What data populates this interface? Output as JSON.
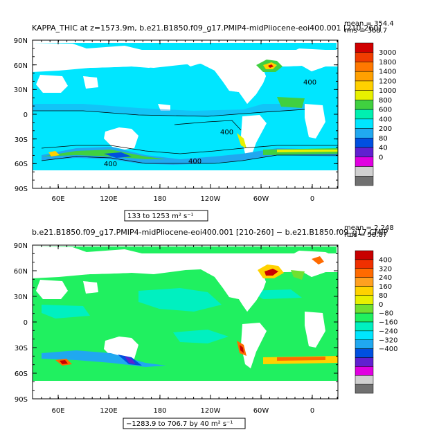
{
  "panel1": {
    "title": "KAPPA_THIC at z=1573.9m, b.e21.B1850.f09_g17.PMIP4-midPliocene-eoi400.001 [210-260]",
    "mean_label": "mean = 354.4",
    "rms_label": "rms = 368.7",
    "range_label": "133 to 1253 m² s⁻¹",
    "contour_labels": [
      "400",
      "400",
      "400",
      "400"
    ],
    "colorbar": {
      "labels": [
        "3000",
        "1800",
        "1400",
        "1200",
        "1000",
        "800",
        "600",
        "400",
        "200",
        "80",
        "40",
        "0"
      ],
      "colors": [
        "#d00000",
        "#f03c00",
        "#ff7800",
        "#ffa000",
        "#ffd000",
        "#e8f000",
        "#40d040",
        "#00f0b0",
        "#00e6ff",
        "#20a8f0",
        "#0050e0",
        "#6020d0",
        "#e000e0",
        "#d0d0d0",
        "#707070"
      ]
    }
  },
  "panel2": {
    "title": "b.e21.B1850.f09_g17.PMIP4-midPliocene-eoi400.001 [210-260] − b.e21.B1850.f09_g17.CMIP",
    "mean_label": "mean = 2.248",
    "rms_label": "rms = 58.87",
    "range_label": "−1283.9 to 706.7 by 40 m² s⁻¹",
    "colorbar": {
      "labels": [
        "400",
        "320",
        "240",
        "160",
        "80",
        "0",
        "−80",
        "−160",
        "−240",
        "−320",
        "−400"
      ],
      "colors": [
        "#c80000",
        "#f03000",
        "#ff6a00",
        "#ffa020",
        "#ffd200",
        "#e8f000",
        "#70e030",
        "#20f060",
        "#00f0c0",
        "#00e6ff",
        "#20a8f0",
        "#0050e0",
        "#6020d0",
        "#e000e0",
        "#d0d0d0",
        "#707070"
      ]
    }
  },
  "axes": {
    "lat_labels": [
      "90N",
      "60N",
      "30N",
      "0",
      "30S",
      "60S",
      "90S"
    ],
    "lon_labels": [
      "60E",
      "120E",
      "180",
      "120W",
      "60W",
      "0"
    ]
  },
  "colors": {
    "ocean_mean": "#00e6ff",
    "ocean_diff": "#20f060",
    "land": "#ffffff"
  }
}
